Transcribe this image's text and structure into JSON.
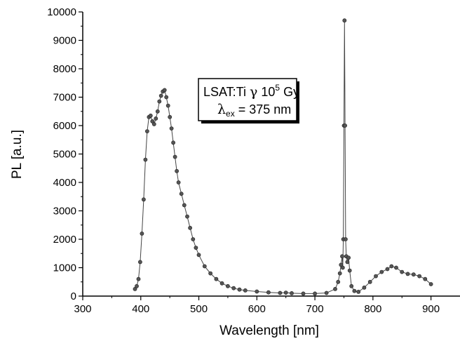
{
  "chart_data": {
    "type": "scatter",
    "xlabel": "Wavelength [nm]",
    "ylabel": "PL [a.u.]",
    "xlim": [
      300,
      950
    ],
    "ylim": [
      0,
      10000
    ],
    "x_ticks": [
      300,
      400,
      500,
      600,
      700,
      800,
      900
    ],
    "y_ticks": [
      0,
      1000,
      2000,
      3000,
      4000,
      5000,
      6000,
      7000,
      8000,
      9000,
      10000
    ],
    "grid": false,
    "annotation": {
      "line1_text": "LSAT:Ti ",
      "line1_greek": "γ",
      "line1_dose": " 10",
      "line1_exp": "5",
      "line1_unit": " Gy",
      "line2_lambda": "λ",
      "line2_sub": "ex",
      "line2_rest": " = 375 nm"
    },
    "marker_color": "#555555",
    "series": [
      {
        "points": [
          [
            390,
            250
          ],
          [
            393,
            350
          ],
          [
            396,
            600
          ],
          [
            399,
            1200
          ],
          [
            402,
            2200
          ],
          [
            405,
            3400
          ],
          [
            408,
            4800
          ],
          [
            411,
            5800
          ],
          [
            414,
            6300
          ],
          [
            417,
            6350
          ],
          [
            420,
            6150
          ],
          [
            423,
            6050
          ],
          [
            426,
            6250
          ],
          [
            429,
            6500
          ],
          [
            432,
            6850
          ],
          [
            435,
            7050
          ],
          [
            438,
            7200
          ],
          [
            441,
            7250
          ],
          [
            444,
            7000
          ],
          [
            447,
            6700
          ],
          [
            450,
            6300
          ],
          [
            453,
            5900
          ],
          [
            456,
            5400
          ],
          [
            459,
            4900
          ],
          [
            462,
            4400
          ],
          [
            465,
            4000
          ],
          [
            470,
            3600
          ],
          [
            475,
            3200
          ],
          [
            480,
            2800
          ],
          [
            485,
            2400
          ],
          [
            490,
            2000
          ],
          [
            495,
            1700
          ],
          [
            500,
            1450
          ],
          [
            510,
            1050
          ],
          [
            520,
            800
          ],
          [
            530,
            600
          ],
          [
            540,
            450
          ],
          [
            550,
            350
          ],
          [
            560,
            280
          ],
          [
            570,
            230
          ],
          [
            580,
            200
          ],
          [
            600,
            160
          ],
          [
            620,
            130
          ],
          [
            640,
            110
          ],
          [
            650,
            120
          ],
          [
            660,
            100
          ],
          [
            680,
            90
          ],
          [
            700,
            90
          ],
          [
            720,
            110
          ],
          [
            735,
            250
          ],
          [
            740,
            500
          ],
          [
            743,
            800
          ],
          [
            745,
            1100
          ],
          [
            747,
            1400
          ],
          [
            748,
            1000
          ],
          [
            749,
            2000
          ],
          [
            750,
            6000
          ],
          [
            751,
            9700
          ],
          [
            752,
            6000
          ],
          [
            753,
            2000
          ],
          [
            754,
            1400
          ],
          [
            756,
            1200
          ],
          [
            758,
            1350
          ],
          [
            760,
            900
          ],
          [
            763,
            350
          ],
          [
            768,
            180
          ],
          [
            775,
            150
          ],
          [
            785,
            300
          ],
          [
            795,
            500
          ],
          [
            805,
            700
          ],
          [
            815,
            850
          ],
          [
            825,
            950
          ],
          [
            832,
            1050
          ],
          [
            840,
            1000
          ],
          [
            850,
            850
          ],
          [
            860,
            780
          ],
          [
            870,
            760
          ],
          [
            880,
            700
          ],
          [
            890,
            600
          ],
          [
            900,
            420
          ]
        ]
      }
    ]
  }
}
